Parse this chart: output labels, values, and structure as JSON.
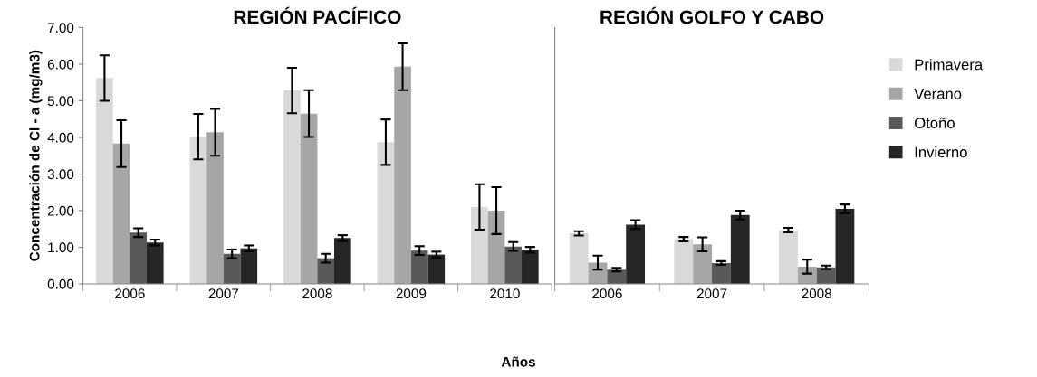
{
  "chart_data": [
    {
      "type": "bar",
      "title": "REGIÓN PACÍFICO",
      "xlabel": "Años",
      "ylabel": "Concentración de Cl - a (mg/m3)",
      "categories": [
        "2006",
        "2007",
        "2008",
        "2009",
        "2010"
      ],
      "series": [
        {
          "name": "Primavera",
          "color": "#d9d9d9",
          "values": [
            5.62,
            4.02,
            5.28,
            3.87,
            2.1
          ],
          "errors": [
            0.62,
            0.62,
            0.62,
            0.62,
            0.62
          ]
        },
        {
          "name": "Verano",
          "color": "#a6a6a6",
          "values": [
            3.83,
            4.14,
            4.65,
            5.93,
            2.0
          ],
          "errors": [
            0.64,
            0.64,
            0.64,
            0.64,
            0.64
          ]
        },
        {
          "name": "Otoño",
          "color": "#595959",
          "values": [
            1.4,
            0.82,
            0.7,
            0.91,
            1.02
          ],
          "errors": [
            0.12,
            0.12,
            0.12,
            0.12,
            0.12
          ]
        },
        {
          "name": "Invierno",
          "color": "#262626",
          "values": [
            1.13,
            0.97,
            1.25,
            0.8,
            0.93
          ],
          "errors": [
            0.08,
            0.08,
            0.08,
            0.08,
            0.08
          ]
        }
      ],
      "ylim": [
        0,
        7
      ],
      "yticks": [
        {
          "value": 0,
          "label": "0.00"
        },
        {
          "value": 1,
          "label": "1.00"
        },
        {
          "value": 2,
          "label": "2.00"
        },
        {
          "value": 3,
          "label": "3.00"
        },
        {
          "value": 4,
          "label": "4.00"
        },
        {
          "value": 5,
          "label": "5.00"
        },
        {
          "value": 6,
          "label": "6.00"
        },
        {
          "value": 7,
          "label": "7.00"
        }
      ],
      "grid": false,
      "legend": "right"
    },
    {
      "type": "bar",
      "title": "REGIÓN GOLFO Y CABO",
      "categories": [
        "2006",
        "2007",
        "2008"
      ],
      "series": [
        {
          "color": "#d9d9d9",
          "values": [
            1.38,
            1.22,
            1.47
          ],
          "errors": [
            0.06,
            0.06,
            0.06
          ]
        },
        {
          "color": "#a6a6a6",
          "values": [
            0.58,
            1.08,
            0.47
          ],
          "errors": [
            0.19,
            0.19,
            0.19
          ]
        },
        {
          "color": "#595959",
          "values": [
            0.39,
            0.57,
            0.45
          ],
          "errors": [
            0.05,
            0.05,
            0.05
          ]
        },
        {
          "color": "#262626",
          "values": [
            1.62,
            1.88,
            2.05
          ],
          "errors": [
            0.12,
            0.12,
            0.12
          ]
        }
      ],
      "ylim": [
        0,
        7
      ],
      "tick_labels": "x",
      "grid": false
    }
  ]
}
